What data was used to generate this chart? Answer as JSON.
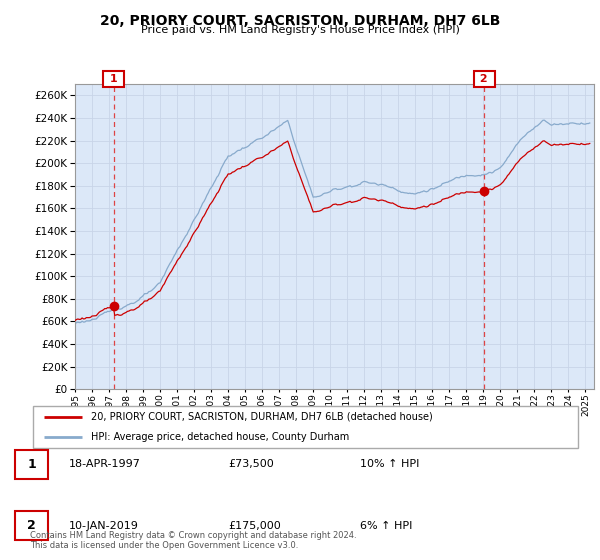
{
  "title": "20, PRIORY COURT, SACRISTON, DURHAM, DH7 6LB",
  "subtitle": "Price paid vs. HM Land Registry's House Price Index (HPI)",
  "ylim": [
    0,
    270000
  ],
  "yticks": [
    0,
    20000,
    40000,
    60000,
    80000,
    100000,
    120000,
    140000,
    160000,
    180000,
    200000,
    220000,
    240000,
    260000
  ],
  "background_color": "#ffffff",
  "grid_color": "#c8d4e8",
  "chart_bg": "#dce8f8",
  "sale1_date": 1997.29,
  "sale1_price": 73500,
  "sale1_date_str": "18-APR-1997",
  "sale1_price_str": "£73,500",
  "sale1_hpi": "10% ↑ HPI",
  "sale2_date": 2019.04,
  "sale2_price": 175000,
  "sale2_date_str": "10-JAN-2019",
  "sale2_price_str": "£175,000",
  "sale2_hpi": "6% ↑ HPI",
  "legend_label1": "20, PRIORY COURT, SACRISTON, DURHAM, DH7 6LB (detached house)",
  "legend_label2": "HPI: Average price, detached house, County Durham",
  "footer": "Contains HM Land Registry data © Crown copyright and database right 2024.\nThis data is licensed under the Open Government Licence v3.0.",
  "line1_color": "#cc0000",
  "line2_color": "#88aacc",
  "marker_color": "#cc0000",
  "vline_color": "#dd4444"
}
